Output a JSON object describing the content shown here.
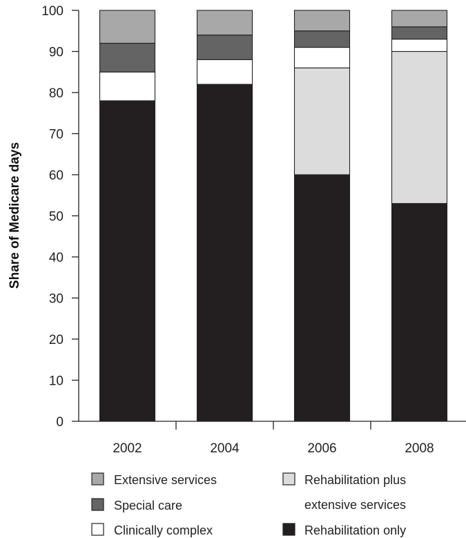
{
  "chart_data": {
    "type": "bar",
    "stacked": true,
    "categories": [
      "2002",
      "2004",
      "2006",
      "2008"
    ],
    "ylabel": "Share of Medicare days",
    "xlabel": "",
    "ylim": [
      0,
      100
    ],
    "yticks": [
      0,
      10,
      20,
      30,
      40,
      50,
      60,
      70,
      80,
      90,
      100
    ],
    "series": [
      {
        "name": "Rehabilitation only",
        "values": [
          78,
          82,
          60,
          53
        ],
        "color": "#231f20"
      },
      {
        "name": "Rehabilitation plus extensive services",
        "values": [
          0,
          0,
          26,
          37
        ],
        "color": "#dcdcdd"
      },
      {
        "name": "Clinically complex",
        "values": [
          7,
          6,
          5,
          3
        ],
        "color": "#ffffff"
      },
      {
        "name": "Special care",
        "values": [
          7,
          6,
          4,
          3
        ],
        "color": "#646464"
      },
      {
        "name": "Extensive services",
        "values": [
          8,
          6,
          5,
          4
        ],
        "color": "#a8a8a9"
      }
    ],
    "legend": {
      "placement": "bottom",
      "entries": [
        {
          "series": 4,
          "lines": [
            "Extensive services"
          ]
        },
        {
          "series": 1,
          "lines": [
            "Rehabilitation plus",
            "extensive services"
          ]
        },
        {
          "series": 3,
          "lines": [
            "Special care"
          ]
        },
        {
          "series": 2,
          "lines": [
            "Clinically complex"
          ]
        },
        {
          "series": 0,
          "lines": [
            "Rehabilitation only"
          ]
        }
      ]
    }
  }
}
